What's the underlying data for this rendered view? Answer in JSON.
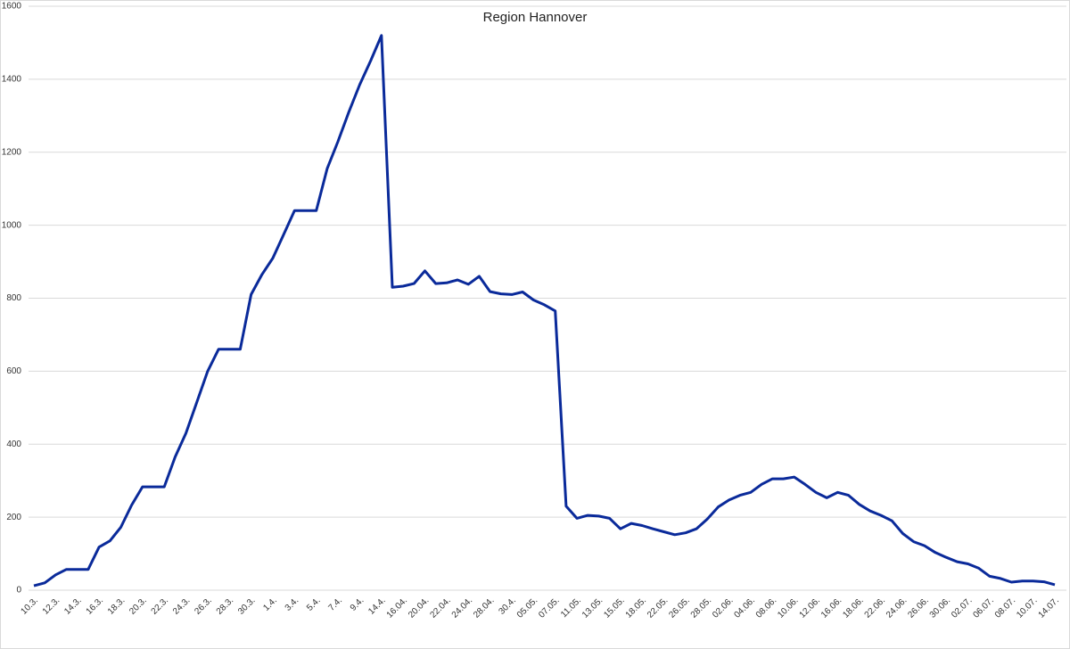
{
  "chart_data": {
    "type": "line",
    "title": "Region Hannover",
    "categories": [
      "10.3.",
      null,
      "12.3.",
      null,
      "14.3.",
      null,
      "16.3.",
      null,
      "18.3.",
      null,
      "20.3.",
      null,
      "22.3.",
      null,
      "24.3.",
      null,
      "26.3.",
      null,
      "28.3.",
      null,
      "30.3.",
      null,
      "1.4.",
      null,
      "3.4.",
      null,
      "5.4.",
      null,
      "7.4.",
      null,
      "9.4.",
      null,
      "14.4.",
      null,
      "16.04.",
      null,
      "20.04.",
      null,
      "22.04.",
      null,
      "24.04.",
      null,
      "28.04.",
      null,
      "30.4.",
      null,
      "05.05.",
      null,
      "07.05.",
      null,
      "11.05.",
      null,
      "13.05.",
      null,
      "15.05.",
      null,
      "18.05.",
      null,
      "22.05.",
      null,
      "26.05.",
      null,
      "28.05.",
      null,
      "02.06.",
      null,
      "04.06.",
      null,
      "08.06.",
      null,
      "10.06.",
      null,
      "12.06.",
      null,
      "16.06.",
      null,
      "18.06.",
      null,
      "22.06.",
      null,
      "24.06.",
      null,
      "26.06.",
      null,
      "30.06.",
      null,
      "02.07.",
      null,
      "06.07.",
      null,
      "08.07.",
      null,
      "10.07.",
      null,
      "14.07."
    ],
    "series": [
      {
        "name": "Region Hannover",
        "color": "#0a2a9a",
        "values": [
          12,
          20,
          42,
          57,
          57,
          57,
          118,
          135,
          172,
          233,
          283,
          283,
          283,
          365,
          430,
          515,
          600,
          660,
          660,
          660,
          810,
          865,
          910,
          975,
          1040,
          1040,
          1040,
          1155,
          1230,
          1310,
          1385,
          1450,
          1520,
          830,
          833,
          840,
          875,
          840,
          842,
          850,
          838,
          860,
          818,
          812,
          810,
          817,
          795,
          782,
          765,
          230,
          197,
          205,
          203,
          197,
          168,
          183,
          177,
          168,
          160,
          152,
          157,
          168,
          195,
          228,
          247,
          260,
          268,
          290,
          305,
          305,
          310,
          290,
          268,
          253,
          268,
          260,
          235,
          217,
          205,
          190,
          155,
          133,
          122,
          103,
          90,
          78,
          72,
          60,
          38,
          32,
          22,
          25,
          25,
          23,
          15
        ]
      }
    ],
    "ylim": [
      0,
      1600
    ],
    "yticks": [
      0,
      200,
      400,
      600,
      800,
      1000,
      1200,
      1400,
      1600
    ],
    "grid": true
  }
}
